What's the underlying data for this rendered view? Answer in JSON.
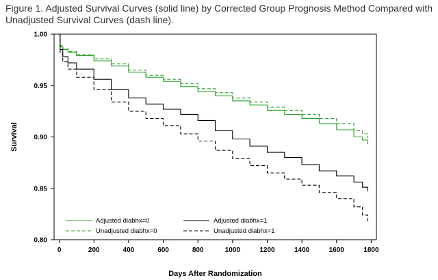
{
  "caption": "Figure 1. Adjusted Survival Curves (solid line) by Corrected Group Prognosis Method Compared with Unadjusted Survival Curves (dash line).",
  "chart_data": {
    "type": "line",
    "title": "",
    "xlabel": "Days After Randomization",
    "ylabel": "Survival",
    "xlim": [
      -30,
      1830
    ],
    "ylim": [
      0.8,
      1.0
    ],
    "x_ticks": [
      0,
      200,
      400,
      600,
      800,
      1000,
      1200,
      1400,
      1600,
      1800
    ],
    "y_ticks": [
      0.8,
      0.85,
      0.9,
      0.95,
      1.0
    ],
    "y_tick_labels": [
      "0.80",
      "0.85",
      "0.90",
      "0.95",
      "1.00"
    ],
    "grid": false,
    "legend_position": "bottom-left",
    "series": [
      {
        "name": "Adjusted diabhx=0",
        "color": "#2e9e2e",
        "dash": "solid",
        "x": [
          0,
          5,
          20,
          50,
          100,
          200,
          300,
          400,
          500,
          600,
          700,
          800,
          900,
          1000,
          1100,
          1200,
          1300,
          1400,
          1500,
          1600,
          1700,
          1750,
          1780
        ],
        "y": [
          1.0,
          0.988,
          0.985,
          0.982,
          0.979,
          0.974,
          0.969,
          0.963,
          0.958,
          0.954,
          0.949,
          0.944,
          0.94,
          0.935,
          0.931,
          0.926,
          0.922,
          0.918,
          0.913,
          0.907,
          0.9,
          0.897,
          0.893
        ]
      },
      {
        "name": "Unadjusted diabhx=0",
        "color": "#2e9e2e",
        "dash": "dashed",
        "x": [
          0,
          5,
          20,
          50,
          100,
          200,
          300,
          400,
          500,
          600,
          700,
          800,
          900,
          1000,
          1100,
          1200,
          1300,
          1400,
          1500,
          1600,
          1700,
          1750,
          1780
        ],
        "y": [
          1.0,
          0.989,
          0.986,
          0.983,
          0.98,
          0.976,
          0.971,
          0.965,
          0.96,
          0.956,
          0.952,
          0.947,
          0.943,
          0.938,
          0.934,
          0.929,
          0.926,
          0.922,
          0.918,
          0.913,
          0.906,
          0.903,
          0.899
        ]
      },
      {
        "name": "Adjusted diabhx=1",
        "color": "#000000",
        "dash": "solid",
        "x": [
          0,
          5,
          20,
          50,
          100,
          200,
          300,
          400,
          500,
          600,
          700,
          800,
          900,
          1000,
          1100,
          1200,
          1300,
          1400,
          1500,
          1600,
          1700,
          1750,
          1780
        ],
        "y": [
          1.0,
          0.985,
          0.978,
          0.972,
          0.966,
          0.956,
          0.946,
          0.938,
          0.932,
          0.927,
          0.922,
          0.916,
          0.906,
          0.898,
          0.891,
          0.885,
          0.88,
          0.873,
          0.867,
          0.862,
          0.856,
          0.851,
          0.847
        ]
      },
      {
        "name": "Unadjusted diabhx=1",
        "color": "#000000",
        "dash": "dashed",
        "x": [
          0,
          5,
          20,
          50,
          100,
          200,
          300,
          400,
          500,
          600,
          700,
          800,
          900,
          1000,
          1100,
          1200,
          1300,
          1400,
          1500,
          1600,
          1700,
          1750,
          1780
        ],
        "y": [
          1.0,
          0.982,
          0.973,
          0.966,
          0.958,
          0.946,
          0.934,
          0.925,
          0.918,
          0.911,
          0.903,
          0.896,
          0.887,
          0.879,
          0.872,
          0.865,
          0.859,
          0.853,
          0.846,
          0.84,
          0.832,
          0.824,
          0.818
        ]
      }
    ]
  }
}
